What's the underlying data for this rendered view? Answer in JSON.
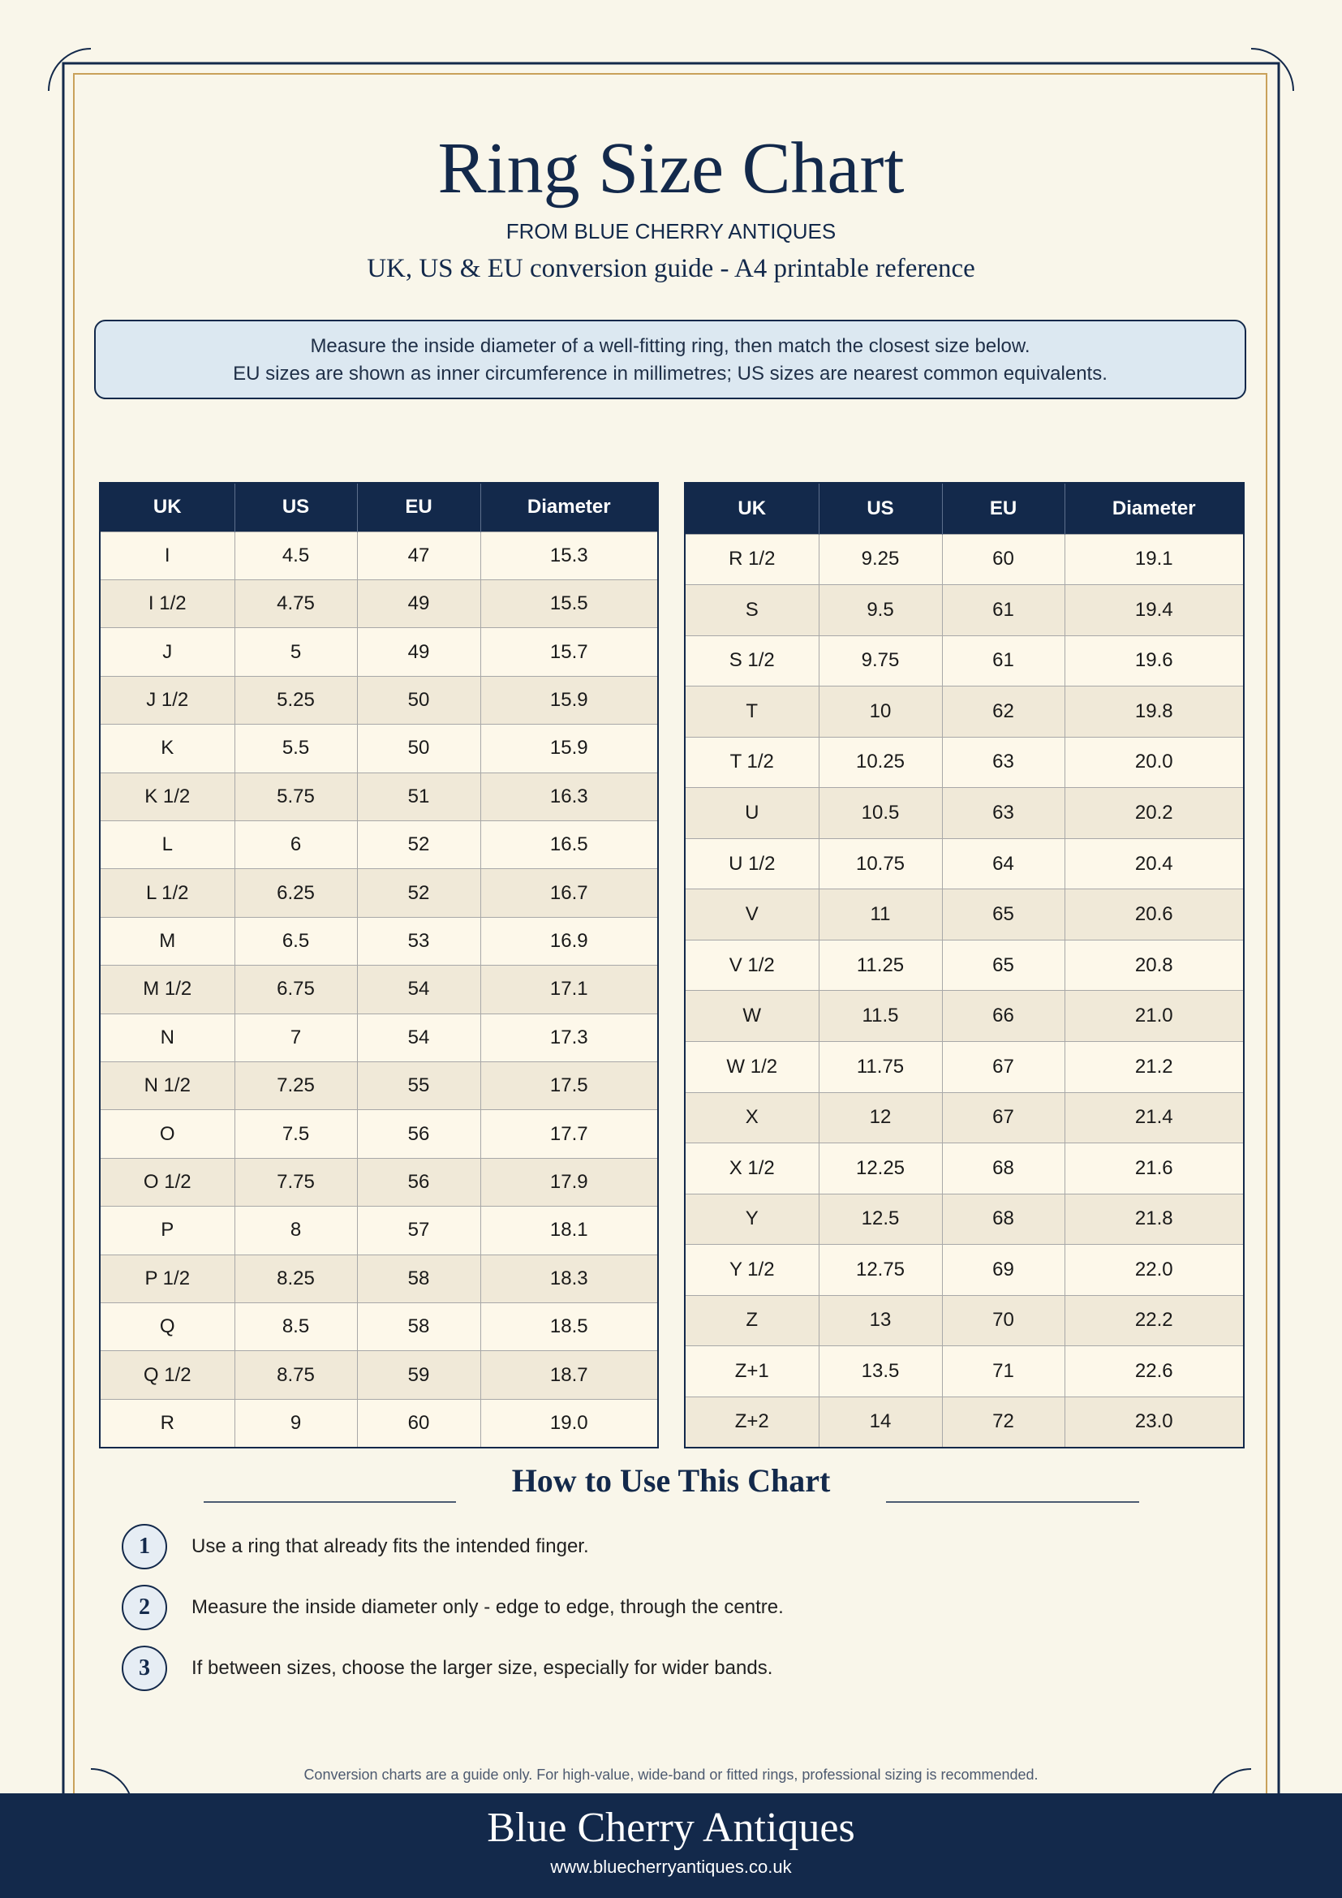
{
  "header": {
    "title": "Ring Size Chart",
    "brand": "FROM BLUE CHERRY ANTIQUES",
    "subtitle": "UK, US & EU conversion guide - A4 printable reference"
  },
  "note": {
    "lines": [
      "Measure the inside diameter of a well-fitting ring, then match the closest size below.",
      "EU sizes are shown as inner circumference in millimetres; US sizes are nearest common equivalents."
    ]
  },
  "tables": [
    {
      "columns": [
        "UK",
        "US",
        "EU",
        "Diameter"
      ],
      "rows": [
        [
          "I",
          "4.5",
          "47",
          "15.3"
        ],
        [
          "I 1/2",
          "4.75",
          "49",
          "15.5"
        ],
        [
          "J",
          "5",
          "49",
          "15.7"
        ],
        [
          "J 1/2",
          "5.25",
          "50",
          "15.9"
        ],
        [
          "K",
          "5.5",
          "50",
          "15.9"
        ],
        [
          "K 1/2",
          "5.75",
          "51",
          "16.3"
        ],
        [
          "L",
          "6",
          "52",
          "16.5"
        ],
        [
          "L 1/2",
          "6.25",
          "52",
          "16.7"
        ],
        [
          "M",
          "6.5",
          "53",
          "16.9"
        ],
        [
          "M 1/2",
          "6.75",
          "54",
          "17.1"
        ],
        [
          "N",
          "7",
          "54",
          "17.3"
        ],
        [
          "N 1/2",
          "7.25",
          "55",
          "17.5"
        ],
        [
          "O",
          "7.5",
          "56",
          "17.7"
        ],
        [
          "O 1/2",
          "7.75",
          "56",
          "17.9"
        ],
        [
          "P",
          "8",
          "57",
          "18.1"
        ],
        [
          "P 1/2",
          "8.25",
          "58",
          "18.3"
        ],
        [
          "Q",
          "8.5",
          "58",
          "18.5"
        ],
        [
          "Q 1/2",
          "8.75",
          "59",
          "18.7"
        ],
        [
          "R",
          "9",
          "60",
          "19.0"
        ]
      ]
    },
    {
      "columns": [
        "UK",
        "US",
        "EU",
        "Diameter"
      ],
      "rows": [
        [
          "R 1/2",
          "9.25",
          "60",
          "19.1"
        ],
        [
          "S",
          "9.5",
          "61",
          "19.4"
        ],
        [
          "S 1/2",
          "9.75",
          "61",
          "19.6"
        ],
        [
          "T",
          "10",
          "62",
          "19.8"
        ],
        [
          "T 1/2",
          "10.25",
          "63",
          "20.0"
        ],
        [
          "U",
          "10.5",
          "63",
          "20.2"
        ],
        [
          "U 1/2",
          "10.75",
          "64",
          "20.4"
        ],
        [
          "V",
          "11",
          "65",
          "20.6"
        ],
        [
          "V 1/2",
          "11.25",
          "65",
          "20.8"
        ],
        [
          "W",
          "11.5",
          "66",
          "21.0"
        ],
        [
          "W 1/2",
          "11.75",
          "67",
          "21.2"
        ],
        [
          "X",
          "12",
          "67",
          "21.4"
        ],
        [
          "X 1/2",
          "12.25",
          "68",
          "21.6"
        ],
        [
          "Y",
          "12.5",
          "68",
          "21.8"
        ],
        [
          "Y 1/2",
          "12.75",
          "69",
          "22.0"
        ],
        [
          "Z",
          "13",
          "70",
          "22.2"
        ],
        [
          "Z+1",
          "13.5",
          "71",
          "22.6"
        ],
        [
          "Z+2",
          "14",
          "72",
          "23.0"
        ]
      ]
    }
  ],
  "how_to": {
    "title": "How to Use This Chart",
    "steps": [
      {
        "number": "1",
        "text": "Use a ring that already fits the intended finger."
      },
      {
        "number": "2",
        "text": "Measure the inside diameter only - edge to edge, through the centre."
      },
      {
        "number": "3",
        "text": "If between sizes, choose the larger size, especially for wider bands."
      }
    ]
  },
  "disclaimer": "Conversion charts are a guide only. For high-value, wide-band or fitted rings, professional sizing is recommended.",
  "footer": {
    "name": "Blue Cherry Antiques",
    "url": "www.bluecherryantiques.co.uk"
  }
}
